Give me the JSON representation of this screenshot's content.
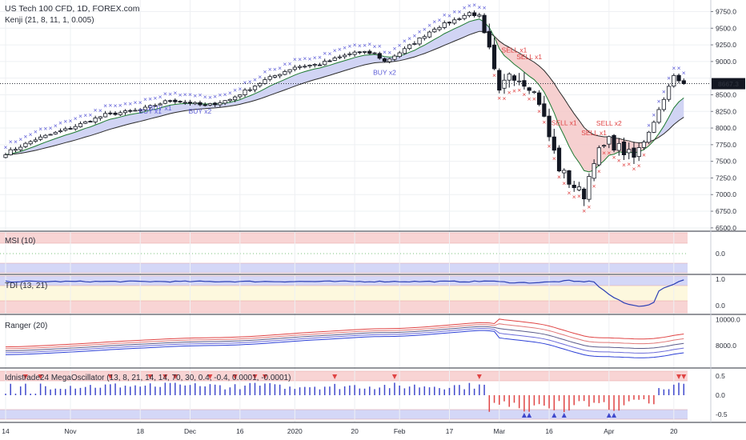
{
  "header": {
    "symbol": "US Tech 100 CFD, 1D, FOREX.com",
    "indicator": "Kenji (21, 8, 11, 1, 0.005)"
  },
  "last_price": "8667.3",
  "colors": {
    "buy": "#5b5bd6",
    "sell": "#e04444",
    "cloud_bull": "#c9cdf2",
    "cloud_bear": "#f5c8c8",
    "ema_fast": "#1e7a32",
    "ema_slow": "#2b2b2b",
    "band_red": "#f6c9c9",
    "band_blue": "#c9cdf5",
    "band_yellow": "#fdf6d6"
  },
  "x_axis": {
    "labels": [
      {
        "label": "14",
        "i": 0
      },
      {
        "label": "Nov",
        "i": 13
      },
      {
        "label": "18",
        "i": 27
      },
      {
        "label": "Dec",
        "i": 37
      },
      {
        "label": "16",
        "i": 47
      },
      {
        "label": "2020",
        "i": 58
      },
      {
        "label": "20",
        "i": 70
      },
      {
        "label": "Feb",
        "i": 79
      },
      {
        "label": "17",
        "i": 89
      },
      {
        "label": "Mar",
        "i": 99
      },
      {
        "label": "16",
        "i": 109
      },
      {
        "label": "Apr",
        "i": 121
      },
      {
        "label": "20",
        "i": 134
      }
    ],
    "bars": 137
  },
  "panes": {
    "price": {
      "yticks": [
        "9750.0",
        "9500.0",
        "9250.0",
        "9000.0",
        "8750.0",
        "8500.0",
        "8250.0",
        "8000.0",
        "7750.0",
        "7500.0",
        "7250.0",
        "7000.0",
        "6750.0",
        "6500.0"
      ],
      "ylim": [
        6450,
        9900
      ]
    },
    "msi": {
      "title": "MSI (10)",
      "yticks": [
        "0.0"
      ]
    },
    "tdi": {
      "title": "TDI (13, 21)",
      "yticks": [
        "1.0",
        "0.0"
      ]
    },
    "ranger": {
      "title": "Ranger (20)",
      "yticks": [
        "10000.0",
        "8000.0"
      ]
    },
    "mega": {
      "title": "Idnistrade24 MegaOscillator (13, 8, 21, 14, 14, 70, 30, 0.4, -0.4, 0.0001, -0.0001)",
      "yticks": [
        "0.5",
        "0.0",
        "-0.5"
      ]
    }
  },
  "signals": [
    {
      "text": "BUY x1",
      "i": 29,
      "price": 8215,
      "side": "buy"
    },
    {
      "text": "BUY x1",
      "i": 31,
      "price": 8265,
      "side": "buy"
    },
    {
      "text": "BUY x2",
      "i": 39,
      "price": 8215,
      "side": "buy"
    },
    {
      "text": "BUY x2",
      "i": 76,
      "price": 8800,
      "side": "buy"
    },
    {
      "text": "SELL x1",
      "i": 102,
      "price": 9135,
      "side": "sell"
    },
    {
      "text": "SELL x1",
      "i": 105,
      "price": 9035,
      "side": "sell"
    },
    {
      "text": "SELL x1",
      "i": 112,
      "price": 8045,
      "side": "sell"
    },
    {
      "text": "SELL x2",
      "i": 121,
      "price": 8035,
      "side": "sell"
    },
    {
      "text": "SELL x1",
      "i": 118,
      "price": 7895,
      "side": "sell"
    }
  ],
  "chart_data": {
    "type": "candlestick",
    "title": "US Tech 100 CFD, 1D, FOREX.com",
    "ylim": [
      6450,
      9900
    ],
    "keypoints": [
      [
        0,
        7620
      ],
      [
        6,
        7830
      ],
      [
        13,
        8000
      ],
      [
        20,
        8200
      ],
      [
        27,
        8270
      ],
      [
        33,
        8420
      ],
      [
        37,
        8380
      ],
      [
        40,
        8330
      ],
      [
        45,
        8430
      ],
      [
        52,
        8720
      ],
      [
        58,
        8920
      ],
      [
        63,
        8960
      ],
      [
        70,
        9140
      ],
      [
        74,
        9120
      ],
      [
        76,
        9000
      ],
      [
        80,
        9180
      ],
      [
        86,
        9500
      ],
      [
        90,
        9620
      ],
      [
        93,
        9730
      ],
      [
        95,
        9680
      ],
      [
        97,
        9150
      ],
      [
        99,
        8500
      ],
      [
        101,
        8850
      ],
      [
        103,
        8750
      ],
      [
        105,
        8650
      ],
      [
        107,
        8400
      ],
      [
        109,
        7870
      ],
      [
        111,
        7400
      ],
      [
        113,
        7200
      ],
      [
        115,
        7050
      ],
      [
        116,
        7000
      ],
      [
        118,
        7550
      ],
      [
        121,
        7800
      ],
      [
        124,
        7650
      ],
      [
        126,
        7550
      ],
      [
        128,
        7800
      ],
      [
        130,
        8100
      ],
      [
        132,
        8450
      ],
      [
        134,
        8780
      ],
      [
        135,
        8700
      ],
      [
        136,
        8667
      ]
    ]
  }
}
